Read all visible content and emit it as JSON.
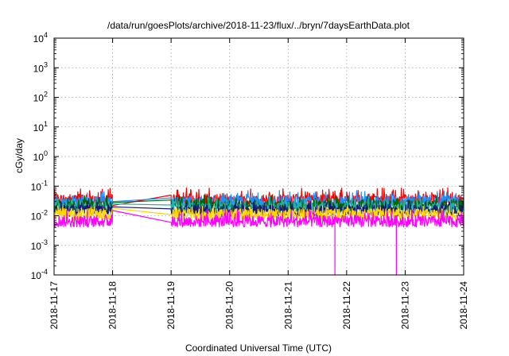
{
  "chart_data": {
    "type": "line",
    "title": "/data/run/goesPlots/archive/2018-11-23/flux/../bryn/7daysEarthData.plot",
    "xlabel": "Coordinated Universal Time (UTC)",
    "ylabel": "cGy/day",
    "yscale": "log",
    "ylim": [
      0.0001,
      10000
    ],
    "xlim": [
      "2018-11-17",
      "2018-11-24"
    ],
    "x_ticks": [
      "2018-11-17",
      "2018-11-18",
      "2018-11-19",
      "2018-11-20",
      "2018-11-21",
      "2018-11-22",
      "2018-11-23",
      "2018-11-24"
    ],
    "y_ticks": [
      {
        "value": 0.0001,
        "base": "10",
        "exp": "-4"
      },
      {
        "value": 0.001,
        "base": "10",
        "exp": "-3"
      },
      {
        "value": 0.01,
        "base": "10",
        "exp": "-2"
      },
      {
        "value": 0.1,
        "base": "10",
        "exp": "-1"
      },
      {
        "value": 1,
        "base": "10",
        "exp": "0"
      },
      {
        "value": 10,
        "base": "10",
        "exp": "1"
      },
      {
        "value": 100,
        "base": "10",
        "exp": "2"
      },
      {
        "value": 1000,
        "base": "10",
        "exp": "3"
      },
      {
        "value": 10000,
        "base": "10",
        "exp": "4"
      }
    ],
    "grid": true,
    "data_gaps": [
      [
        "2018-11-18",
        "2018-11-19"
      ]
    ],
    "dropouts": [
      {
        "series": "magenta",
        "date": "2018-11-21.8",
        "value": 0.0001
      },
      {
        "series": "magenta",
        "date": "2018-11-22.85",
        "value": 0.0001
      }
    ],
    "series": [
      {
        "color": "#ff0000",
        "level": 0.035,
        "peak": 0.08,
        "gap_values": [
          0.022,
          0.05
        ]
      },
      {
        "color": "#1e90ff",
        "level": 0.03,
        "peak": 0.065,
        "gap_values": [
          0.03,
          0.04
        ]
      },
      {
        "color": "#006400",
        "level": 0.022,
        "peak": 0.045,
        "gap_values": [
          0.028,
          0.034
        ]
      },
      {
        "color": "#20b2aa",
        "level": 0.018,
        "peak": 0.035,
        "gap_values": [
          0.025,
          0.023
        ]
      },
      {
        "color": "#191970",
        "level": 0.015,
        "peak": 0.028,
        "gap_values": [
          0.02,
          0.017
        ]
      },
      {
        "color": "#ffd700",
        "level": 0.011,
        "peak": 0.02,
        "gap_values": [
          0.018,
          0.011
        ]
      },
      {
        "color": "#ff00ff",
        "level": 0.0065,
        "peak": 0.015,
        "gap_values": [
          0.015,
          0.006
        ]
      }
    ]
  }
}
